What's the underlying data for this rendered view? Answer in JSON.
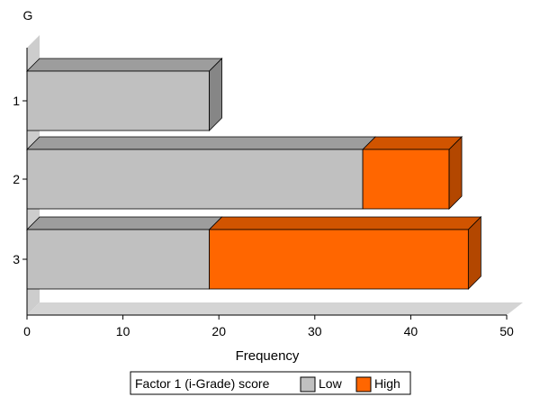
{
  "chart_data": {
    "type": "bar",
    "orientation": "horizontal",
    "stacked": true,
    "three_d": true,
    "axis_group_label": "G",
    "categories": [
      "1",
      "2",
      "3"
    ],
    "series": [
      {
        "name": "Low",
        "color": "#c0c0c0",
        "values": [
          19,
          35,
          19
        ]
      },
      {
        "name": "High",
        "color": "#ff6600",
        "values": [
          0,
          9,
          27
        ]
      }
    ],
    "xlabel": "Frequency",
    "xlim": [
      0,
      50
    ],
    "xticks": [
      "0",
      "10",
      "20",
      "30",
      "40",
      "50"
    ],
    "legend": {
      "title": "Factor 1 (i-Grade) score",
      "position": "bottom"
    },
    "grid": false
  }
}
